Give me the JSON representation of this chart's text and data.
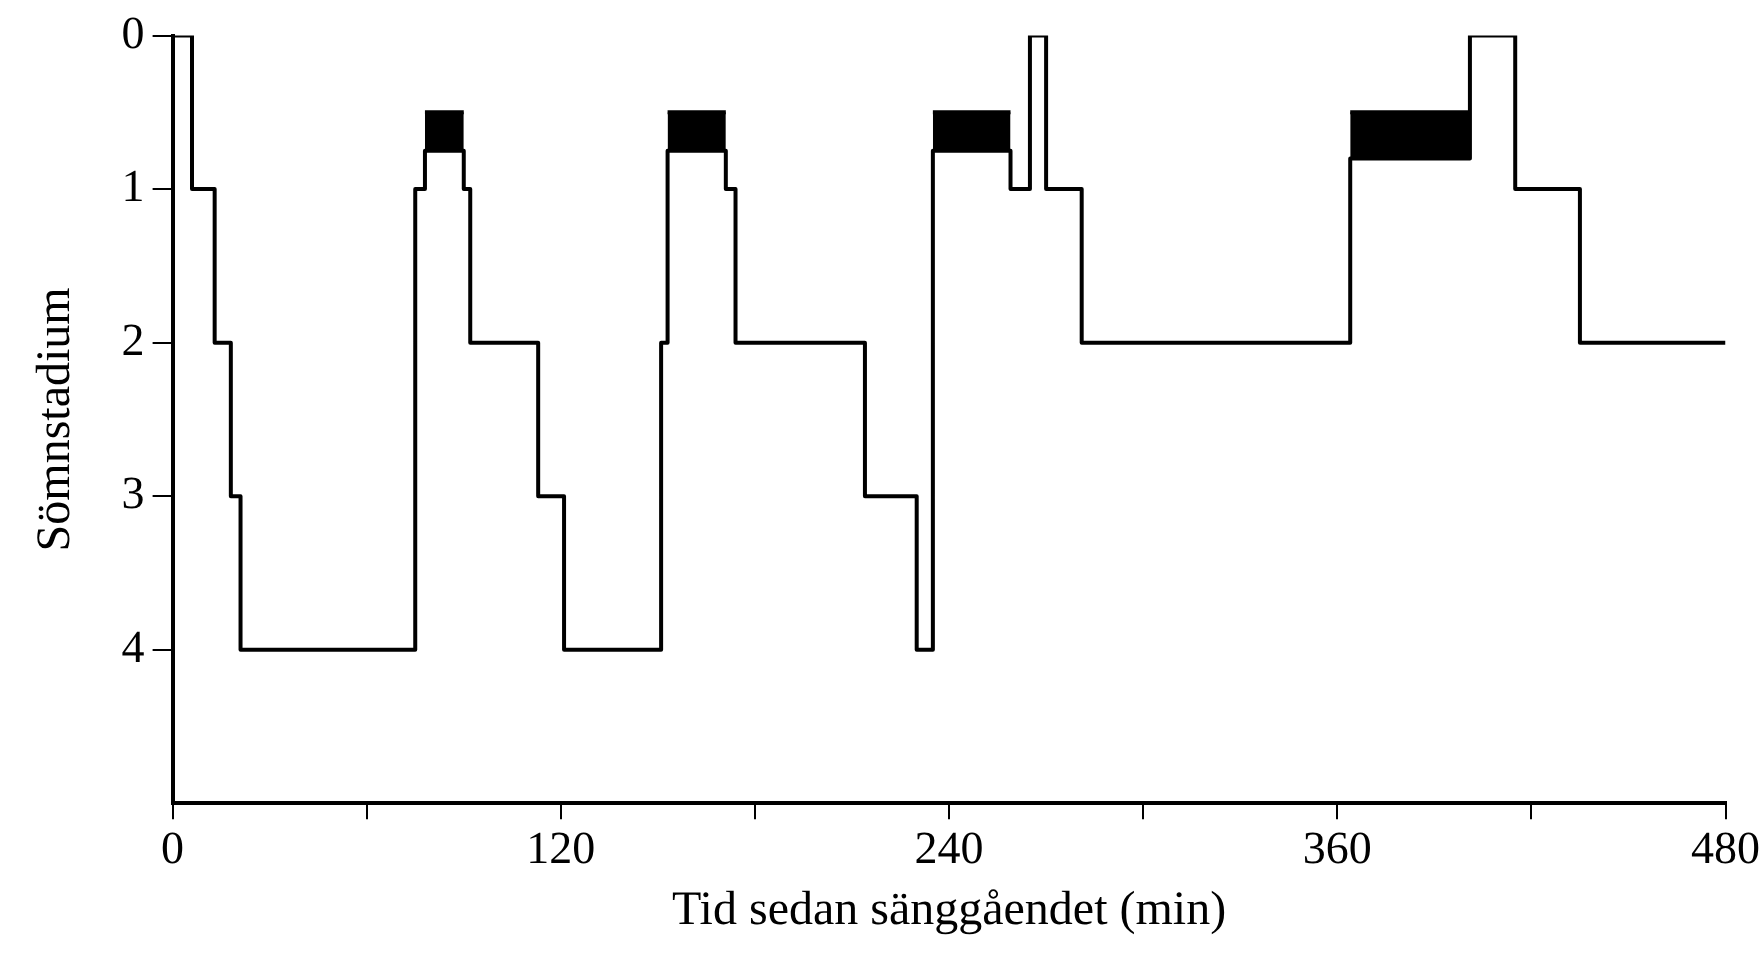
{
  "chart_data": {
    "type": "step",
    "xlabel": "Tid sedan sänggåendet (min)",
    "ylabel": "Sömnstadium",
    "xlim": [
      0,
      480
    ],
    "xticks": [
      0,
      {
        "value": 60,
        "label": null
      },
      120,
      {
        "value": 180,
        "label": null
      },
      240,
      {
        "value": 300,
        "label": null
      },
      360,
      {
        "value": 420,
        "label": null
      },
      480
    ],
    "ylim": [
      5,
      0
    ],
    "yticks": [
      0,
      1,
      2,
      3,
      4
    ],
    "legend": false,
    "marker": "none",
    "line_style": "solid",
    "series": [
      {
        "color": "#000000",
        "x": [
          0,
          6,
          13,
          18,
          21,
          75,
          78,
          90,
          92,
          113,
          121,
          151,
          153,
          171,
          174,
          214,
          230,
          235,
          259,
          265,
          270,
          281,
          364,
          401,
          415,
          435,
          480
        ],
        "values": [
          0,
          1,
          2,
          3,
          4,
          1,
          0.75,
          1,
          2,
          3,
          4,
          2,
          0.75,
          1,
          2,
          3,
          4,
          0.75,
          1,
          0,
          1,
          2,
          0.8,
          0,
          1,
          2,
          2
        ]
      },
      {
        "color": "#000000",
        "x": [
          78,
          90
        ],
        "values": [
          0.5,
          0.5
        ],
        "lower": [
          0.75,
          0.75
        ],
        "upper": [
          0.5,
          0.5
        ]
      },
      {
        "color": "#000000",
        "x": [
          153,
          171
        ],
        "values": [
          0.5,
          0.5
        ],
        "lower": [
          0.75,
          0.75
        ],
        "upper": [
          0.5,
          0.5
        ]
      },
      {
        "color": "#000000",
        "x": [
          235,
          259
        ],
        "values": [
          0.5,
          0.5
        ],
        "lower": [
          0.75,
          0.75
        ],
        "upper": [
          0.5,
          0.5
        ]
      },
      {
        "color": "#000000",
        "x": [
          364,
          401
        ],
        "values": [
          0.5,
          0.5
        ],
        "lower": [
          0.8,
          0.8
        ],
        "upper": [
          0.5,
          0.5
        ]
      }
    ]
  }
}
